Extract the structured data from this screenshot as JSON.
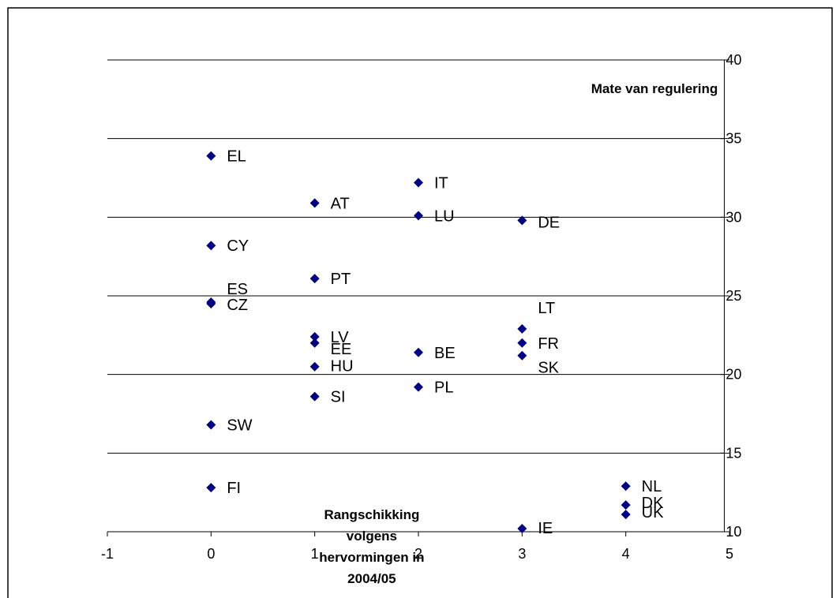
{
  "chart_data": {
    "type": "scatter",
    "title": "",
    "xlabel": "Rangschikking volgens hervormingen in 2004/05",
    "xlabel_lines": [
      "Rangschikking",
      "volgens",
      "hervormingen in",
      "2004/05"
    ],
    "ylabel": "Mate van regulering",
    "xlim": [
      -1,
      5
    ],
    "ylim": [
      10,
      40
    ],
    "x_ticks": [
      -1,
      0,
      1,
      2,
      3,
      4,
      5
    ],
    "y_ticks": [
      10,
      15,
      20,
      25,
      30,
      35,
      40
    ],
    "grid": "horizontal",
    "legend": "none",
    "marker": "diamond",
    "colors": {
      "marker": "#000080",
      "gridline": "#000000",
      "axis": "#000000",
      "frame": "#000000",
      "background": "#ffffff"
    },
    "points": [
      {
        "label": "EL",
        "x": 0,
        "y": 33.9
      },
      {
        "label": "CY",
        "x": 0,
        "y": 28.2
      },
      {
        "label": "ES",
        "x": 0,
        "y": 24.6
      },
      {
        "label": "CZ",
        "x": 0,
        "y": 24.5
      },
      {
        "label": "SW",
        "x": 0,
        "y": 16.8
      },
      {
        "label": "FI",
        "x": 0,
        "y": 12.8
      },
      {
        "label": "AT",
        "x": 1,
        "y": 30.9
      },
      {
        "label": "PT",
        "x": 1,
        "y": 26.1
      },
      {
        "label": "LV",
        "x": 1,
        "y": 22.4
      },
      {
        "label": "EE",
        "x": 1,
        "y": 22.0
      },
      {
        "label": "HU",
        "x": 1,
        "y": 20.5
      },
      {
        "label": "SI",
        "x": 1,
        "y": 18.6
      },
      {
        "label": "IT",
        "x": 2,
        "y": 32.2
      },
      {
        "label": "LU",
        "x": 2,
        "y": 30.1
      },
      {
        "label": "BE",
        "x": 2,
        "y": 21.4
      },
      {
        "label": "PL",
        "x": 2,
        "y": 19.2
      },
      {
        "label": "DE",
        "x": 3,
        "y": 29.8
      },
      {
        "label": "LT",
        "x": 3,
        "y": 22.9
      },
      {
        "label": "FR",
        "x": 3,
        "y": 22.0
      },
      {
        "label": "SK",
        "x": 3,
        "y": 21.2
      },
      {
        "label": "IE",
        "x": 3,
        "y": 10.2
      },
      {
        "label": "NL",
        "x": 4,
        "y": 12.9
      },
      {
        "label": "DK",
        "x": 4,
        "y": 11.7
      },
      {
        "label": "UK",
        "x": 4,
        "y": 11.1
      }
    ]
  }
}
